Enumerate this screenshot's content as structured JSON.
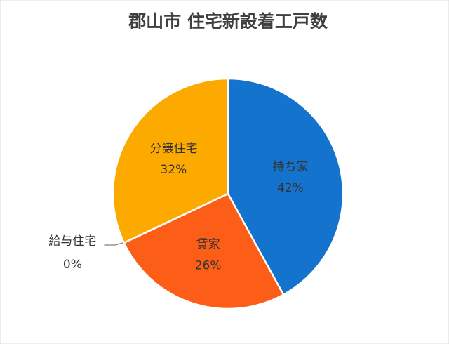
{
  "chart_data": {
    "type": "pie",
    "title": "郡山市 住宅新設着工戸数",
    "categories": [
      "持ち家",
      "貸家",
      "給与住宅",
      "分譲住宅"
    ],
    "values": [
      42,
      26,
      0,
      32
    ],
    "value_labels": [
      "42%",
      "26%",
      "0%",
      "32%"
    ],
    "colors": [
      "#1473cc",
      "#fd5e17",
      "#a5a5a5",
      "#fdaa00"
    ]
  }
}
